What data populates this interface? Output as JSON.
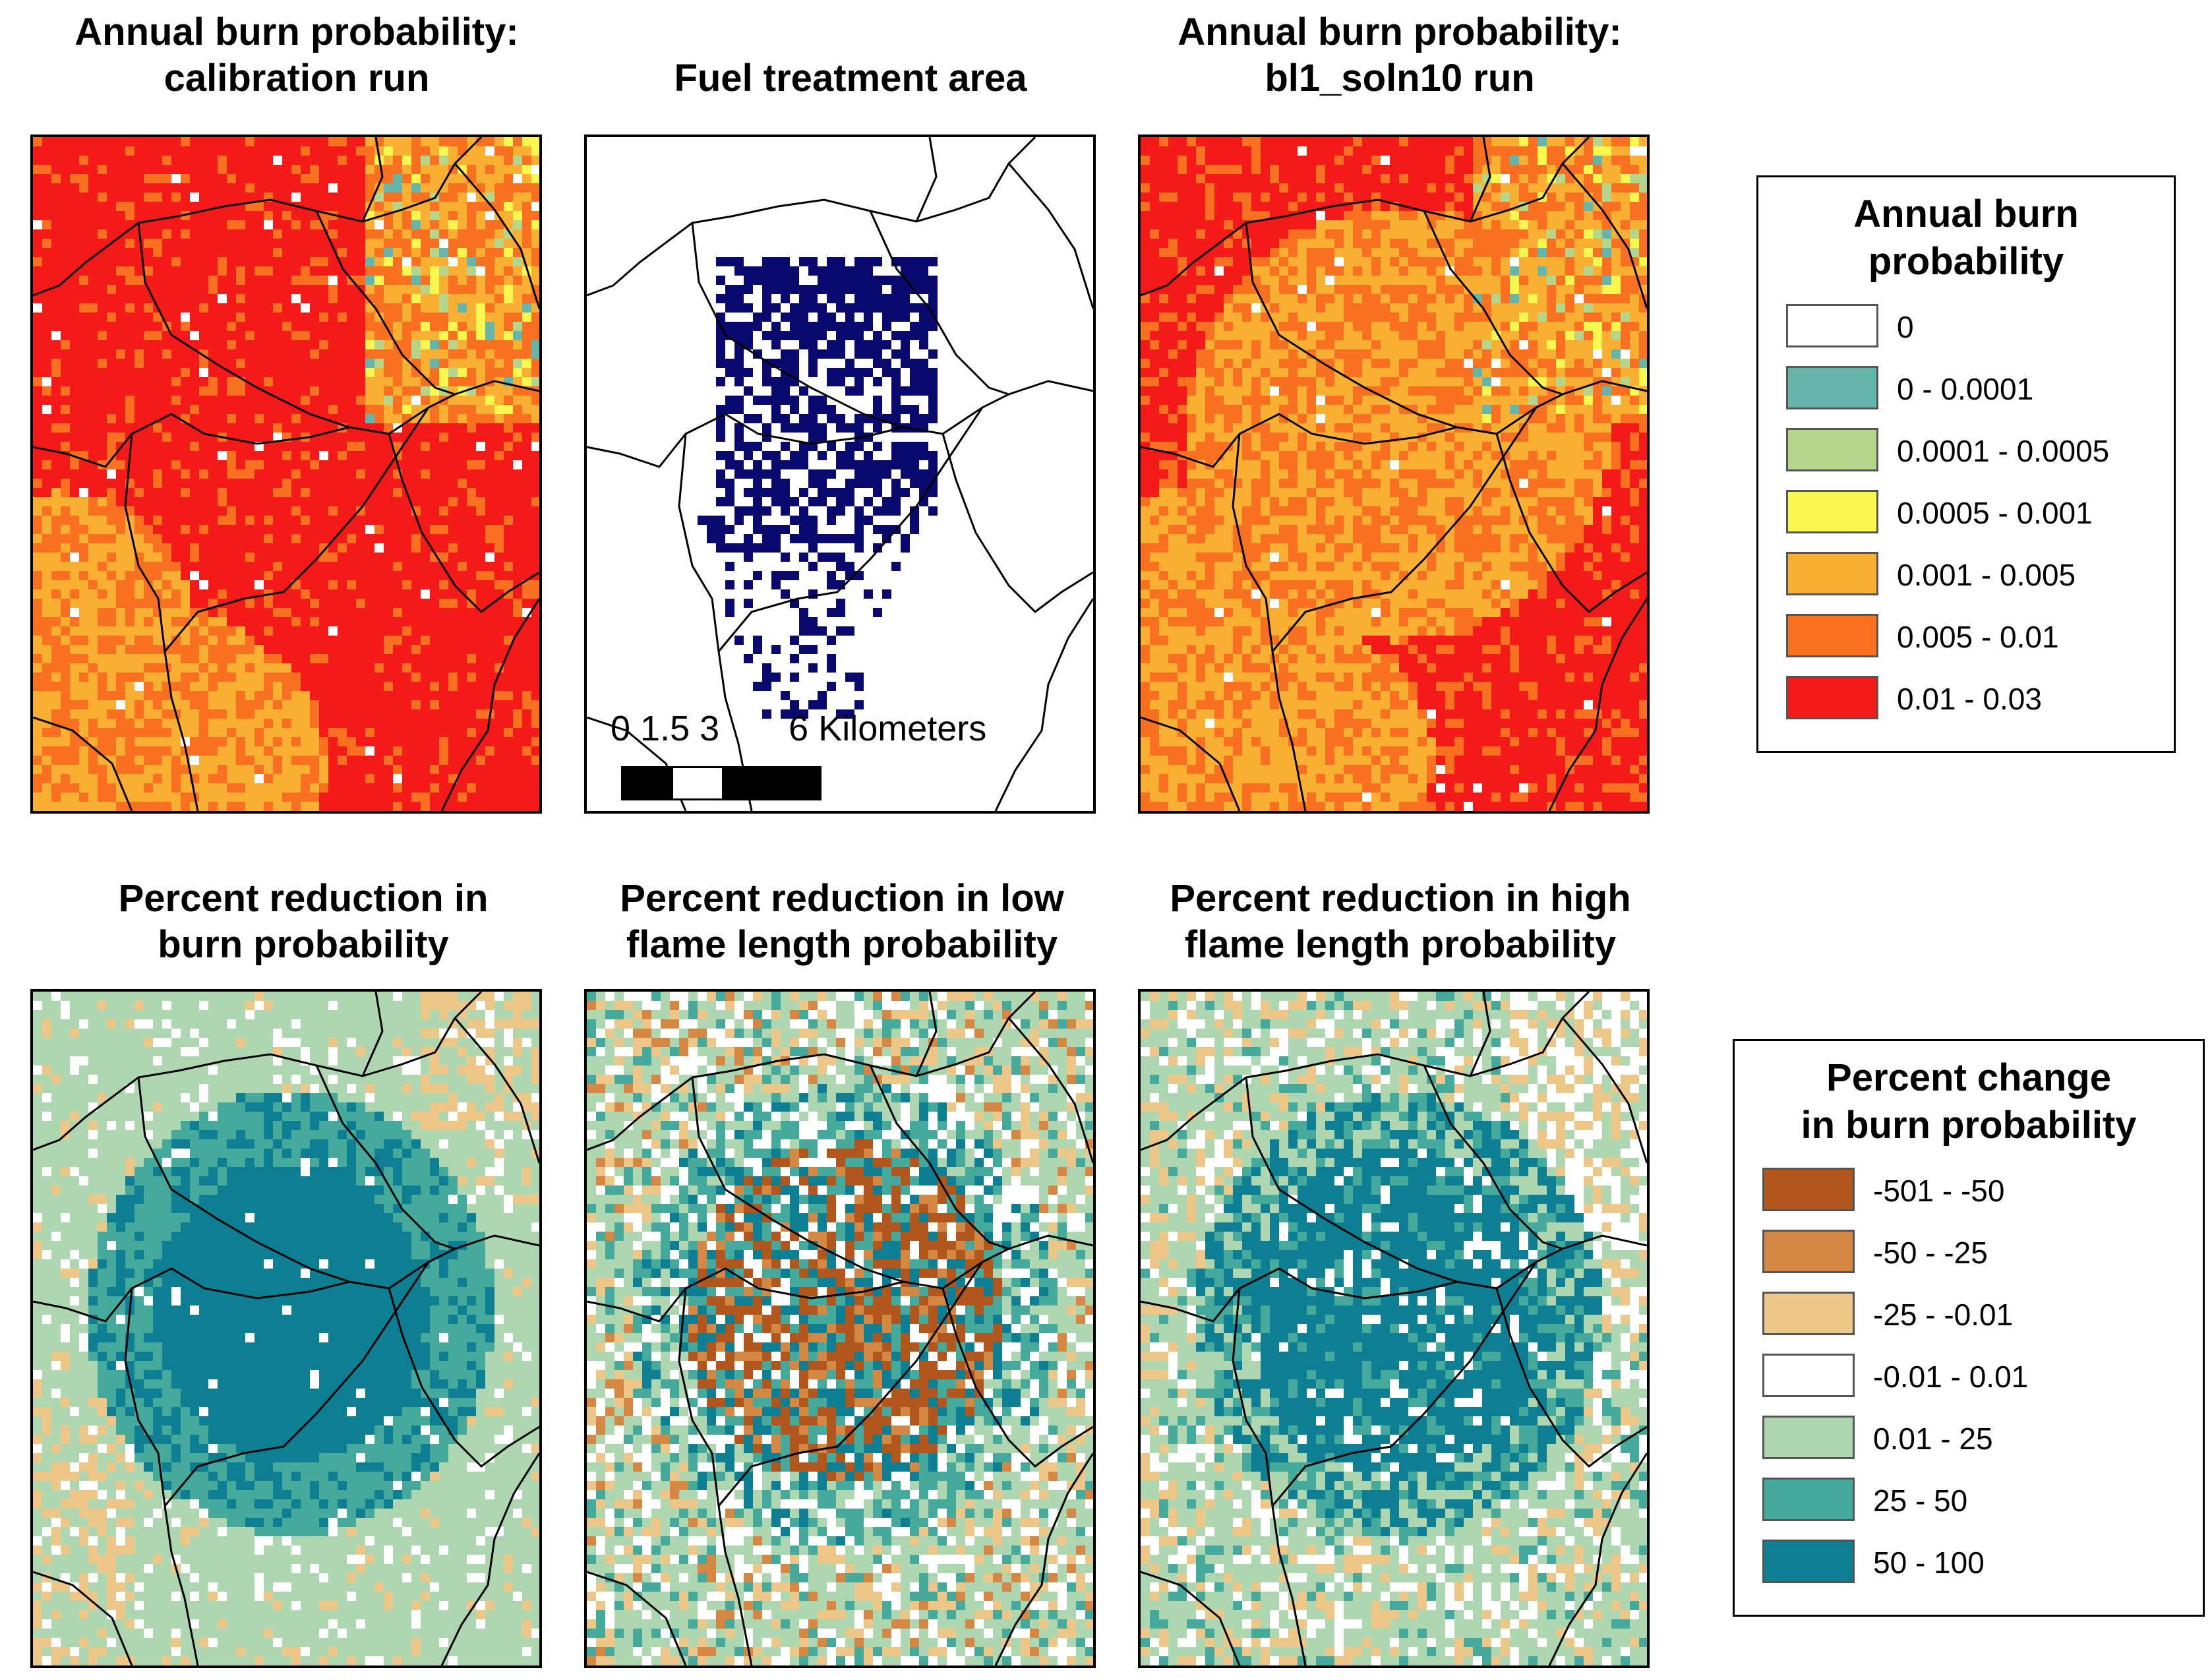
{
  "panels": [
    {
      "title_line1": "Annual burn probability:",
      "title_line2": "calibration run"
    },
    {
      "title_line1": "Fuel treatment area",
      "title_line2": ""
    },
    {
      "title_line1": "Annual burn probability:",
      "title_line2": "bl1_soln10 run"
    },
    {
      "title_line1": "Percent reduction in",
      "title_line2": "burn probability"
    },
    {
      "title_line1": "Percent reduction in low",
      "title_line2": "flame length probability"
    },
    {
      "title_line1": "Percent reduction in high",
      "title_line2": "flame length probability"
    }
  ],
  "scale_bar": {
    "label": "0 1.5 3       6 Kilometers"
  },
  "legend_burn": {
    "title_line1": "Annual burn",
    "title_line2": "probability",
    "items": [
      {
        "label": "0",
        "color": "#ffffff"
      },
      {
        "label": "0 - 0.0001",
        "color": "#66b5ab"
      },
      {
        "label": "0.0001 - 0.0005",
        "color": "#b5d68a"
      },
      {
        "label": "0.0005 - 0.001",
        "color": "#f9f74f"
      },
      {
        "label": "0.001 - 0.005",
        "color": "#fbaf33"
      },
      {
        "label": "0.005 - 0.01",
        "color": "#f97121"
      },
      {
        "label": "0.01 - 0.03",
        "color": "#f51a1a"
      }
    ]
  },
  "legend_change": {
    "title_line1": "Percent change",
    "title_line2": "in burn probability",
    "items": [
      {
        "label": "-501 - -50",
        "color": "#b1561d"
      },
      {
        "label": "-50 - -25",
        "color": "#d48843"
      },
      {
        "label": "-25 - -0.01",
        "color": "#ecc787"
      },
      {
        "label": "-0.01 - 0.01",
        "color": "#ffffff"
      },
      {
        "label": "0.01 - 25",
        "color": "#aed6b0"
      },
      {
        "label": "25 - 50",
        "color": "#45aa9c"
      },
      {
        "label": "50 - 100",
        "color": "#0e7f93"
      }
    ]
  },
  "colors": {
    "treatment": "#0a0a6e",
    "boundary": "#000000"
  }
}
